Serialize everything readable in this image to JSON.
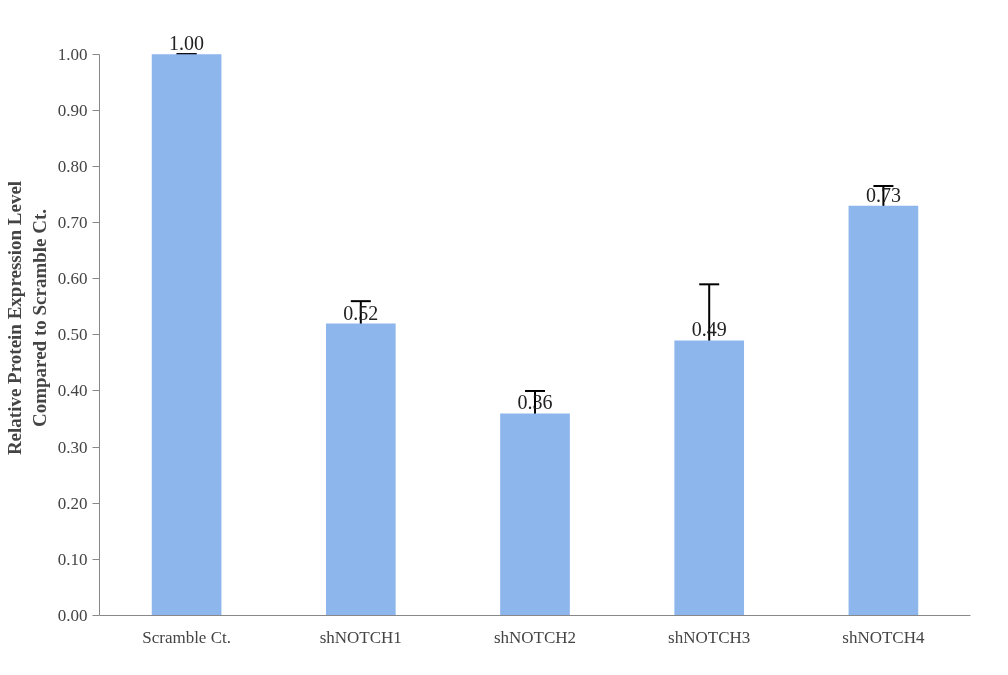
{
  "chart_data": {
    "type": "bar",
    "ylabel": "Relative Protein Expression Level\nCompared to Scramble Ct.",
    "categories": [
      "Scramble Ct.",
      "shNOTCH1",
      "shNOTCH2",
      "shNOTCH3",
      "shNOTCH4"
    ],
    "values": [
      1.0,
      0.52,
      0.36,
      0.49,
      0.73
    ],
    "errors": [
      0,
      0.04,
      0.04,
      0.1,
      0.035
    ],
    "value_labels": [
      "1.00",
      "0.52",
      "0.36",
      "0.49",
      "0.73"
    ],
    "color": "#8db6ec",
    "ylim": [
      0,
      1.0
    ],
    "yticks": [
      {
        "value": 0,
        "label": "0.00"
      },
      {
        "value": 0.1,
        "label": "0.10"
      },
      {
        "value": 0.2,
        "label": "0.20"
      },
      {
        "value": 0.3,
        "label": "0.30"
      },
      {
        "value": 0.4,
        "label": "0.40"
      },
      {
        "value": 0.5,
        "label": "0.50"
      },
      {
        "value": 0.6,
        "label": "0.60"
      },
      {
        "value": 0.7,
        "label": "0.70"
      },
      {
        "value": 0.8,
        "label": "0.80"
      },
      {
        "value": 0.9,
        "label": "0.90"
      },
      {
        "value": 1.0,
        "label": "1.00"
      }
    ],
    "grid": false
  }
}
